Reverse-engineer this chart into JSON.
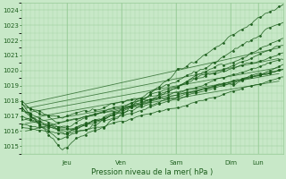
{
  "title": "",
  "xlabel": "Pression niveau de la mer( hPa )",
  "background_color": "#c8e8c8",
  "grid_color": "#99cc99",
  "line_color": "#1a5c1a",
  "ylim": [
    1014.5,
    1024.5
  ],
  "xlim": [
    0,
    115
  ],
  "yticks": [
    1015,
    1016,
    1017,
    1018,
    1019,
    1020,
    1021,
    1022,
    1023,
    1024
  ],
  "day_tick_positions": [
    20,
    44,
    68,
    92,
    104
  ],
  "day_labels": [
    "Jeu",
    "Ven",
    "Sam",
    "Dim",
    "Lun"
  ],
  "n_points": 115
}
